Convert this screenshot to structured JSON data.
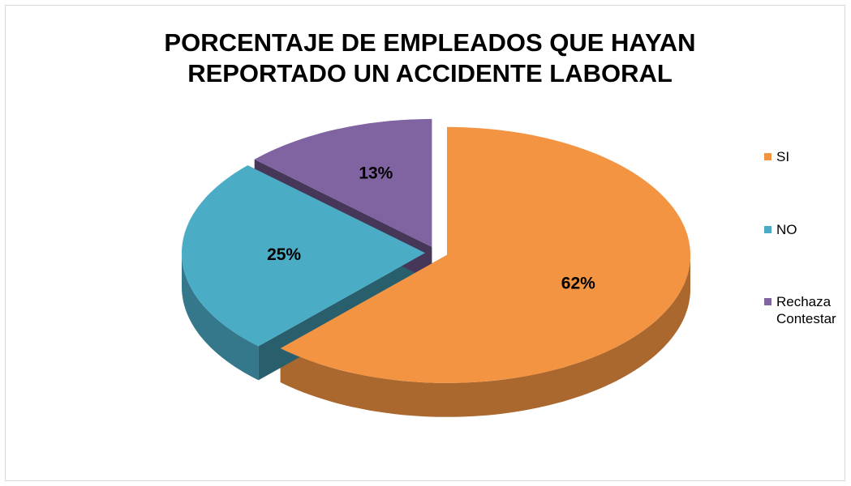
{
  "chart_data": {
    "type": "pie",
    "title": "PORCENTAJE DE EMPLEADOS QUE HAYAN REPORTADO UN ACCIDENTE LABORAL",
    "categories": [
      "SI",
      "NO",
      "Rechaza Contestar"
    ],
    "values": [
      62,
      25,
      13
    ],
    "value_labels": [
      "62%",
      "25%",
      "13%"
    ],
    "colors": [
      "#f39443",
      "#4bacc6",
      "#8064a2"
    ],
    "legend": "right"
  }
}
